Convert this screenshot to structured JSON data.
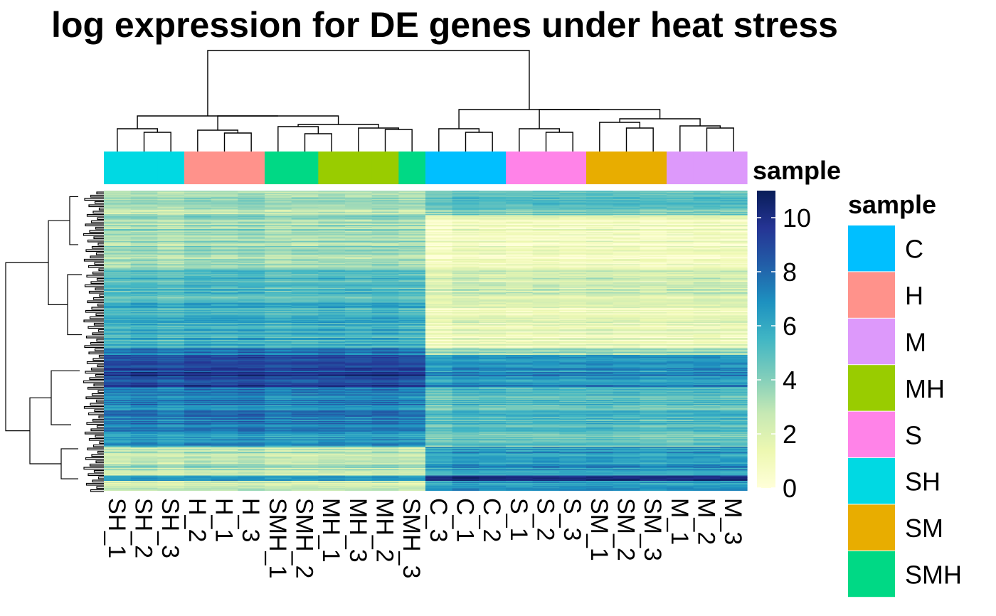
{
  "chart_data": {
    "type": "heatmap",
    "title": "log expression for DE genes under heat stress",
    "columns": [
      "SH_1",
      "SH_2",
      "SH_3",
      "H_2",
      "H_1",
      "H_3",
      "SMH_1",
      "SMH_2",
      "MH_1",
      "MH_3",
      "MH_2",
      "SMH_3",
      "C_3",
      "C_1",
      "C_2",
      "S_1",
      "S_2",
      "S_3",
      "SM_1",
      "SM_2",
      "SM_3",
      "M_1",
      "M_2",
      "M_3"
    ],
    "column_groups": [
      "SH",
      "SH",
      "SH",
      "H",
      "H",
      "H",
      "SMH",
      "SMH",
      "MH",
      "MH",
      "MH",
      "SMH",
      "C",
      "C",
      "C",
      "S",
      "S",
      "S",
      "SM",
      "SM",
      "SM",
      "M",
      "M",
      "M"
    ],
    "annotation_title": "sample",
    "legend_title": "sample",
    "legend": [
      {
        "label": "C",
        "color": "#00BFFF"
      },
      {
        "label": "H",
        "color": "#FF928B"
      },
      {
        "label": "M",
        "color": "#DD99FB"
      },
      {
        "label": "MH",
        "color": "#99CC00"
      },
      {
        "label": "S",
        "color": "#FF83E8"
      },
      {
        "label": "SH",
        "color": "#00D9E3"
      },
      {
        "label": "SM",
        "color": "#E8AD00"
      },
      {
        "label": "SMH",
        "color": "#00D985"
      }
    ],
    "colorscale": {
      "min": 0,
      "max": 11,
      "ticks": [
        "10",
        "8",
        "6",
        "4",
        "2",
        "0"
      ],
      "tick_values": [
        10,
        8,
        6,
        4,
        2,
        0
      ],
      "colors": [
        "#FFFFD9",
        "#EDF8B1",
        "#C7E9B4",
        "#7FCDBB",
        "#41B6C4",
        "#1D91C0",
        "#225EA8",
        "#253494",
        "#081D58"
      ]
    },
    "row_blocks": [
      {
        "weight": 6,
        "left": 3.0,
        "right": 4.5
      },
      {
        "weight": 13,
        "left": 3.5,
        "right": 1.0
      },
      {
        "weight": 8,
        "left": 5.0,
        "right": 2.2
      },
      {
        "weight": 11,
        "left": 5.5,
        "right": 1.2
      },
      {
        "weight": 1.5,
        "left": 7.5,
        "right": 3.5
      },
      {
        "weight": 4,
        "left": 8.8,
        "right": 6.5
      },
      {
        "weight": 1,
        "left": 10.5,
        "right": 8.0
      },
      {
        "weight": 3,
        "left": 8.8,
        "right": 6.5
      },
      {
        "weight": 11,
        "left": 7.2,
        "right": 5.0
      },
      {
        "weight": 3,
        "left": 6.5,
        "right": 4.5
      },
      {
        "weight": 7,
        "left": 3.0,
        "right": 6.5
      },
      {
        "weight": 1.2,
        "left": 6.0,
        "right": 9.5
      },
      {
        "weight": 2.3,
        "left": 2.5,
        "right": 6.5
      }
    ],
    "col_offsets": [
      -0.2,
      0.2,
      -0.4,
      0.3,
      0.1,
      0.5,
      -0.3,
      -0.1,
      0.2,
      0.0,
      0.3,
      -0.2,
      -0.5,
      0.4,
      0.1,
      -0.1,
      0.2,
      0.0,
      0.3,
      0.1,
      -0.2,
      0.0,
      0.2,
      0.1
    ]
  }
}
